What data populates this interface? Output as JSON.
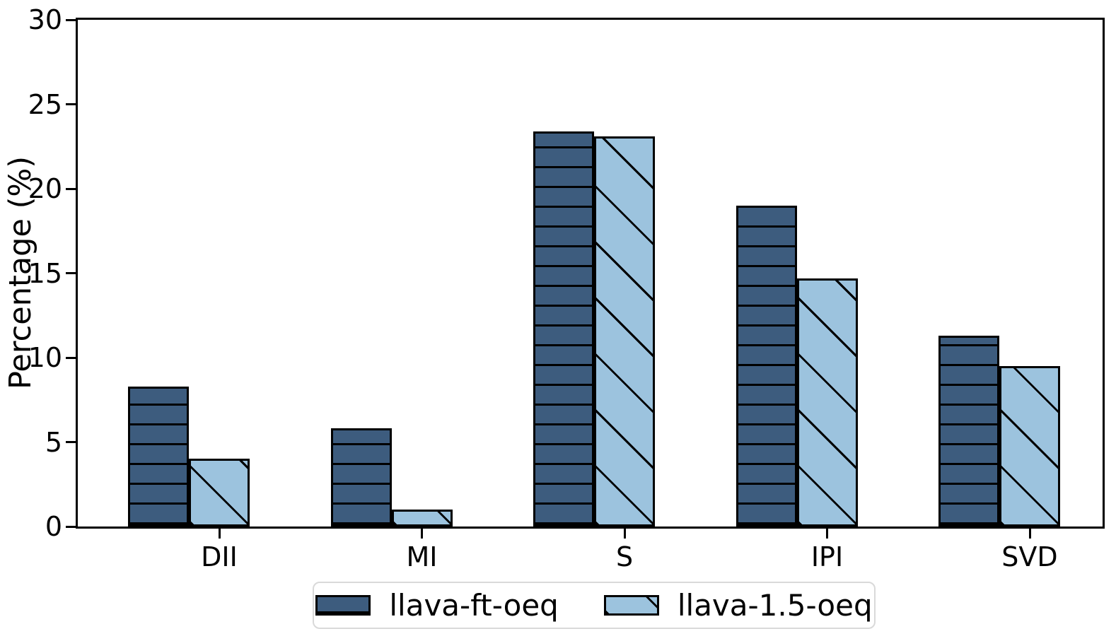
{
  "chart_data": {
    "type": "bar",
    "title": "",
    "xlabel": "",
    "ylabel": "Percentage (%)",
    "categories": [
      "DII",
      "MI",
      "S",
      "IPI",
      "SVD"
    ],
    "series": [
      {
        "name": "llava-ft-oeq",
        "color": "#3D5C7E",
        "hatch": "horizontal",
        "values": [
          8.3,
          5.8,
          23.4,
          19.0,
          11.3
        ]
      },
      {
        "name": "llava-1.5-oeq",
        "color": "#9CC3DE",
        "hatch": "diagonal",
        "values": [
          4.0,
          1.0,
          23.1,
          14.7,
          9.5
        ]
      }
    ],
    "ylim": [
      0,
      30
    ],
    "yticks": [
      0,
      5,
      10,
      15,
      20,
      25,
      30
    ],
    "grid": false,
    "legend_position": "bottom",
    "edge_color": "#000000",
    "legend_border_color": "#d9d9d9"
  }
}
